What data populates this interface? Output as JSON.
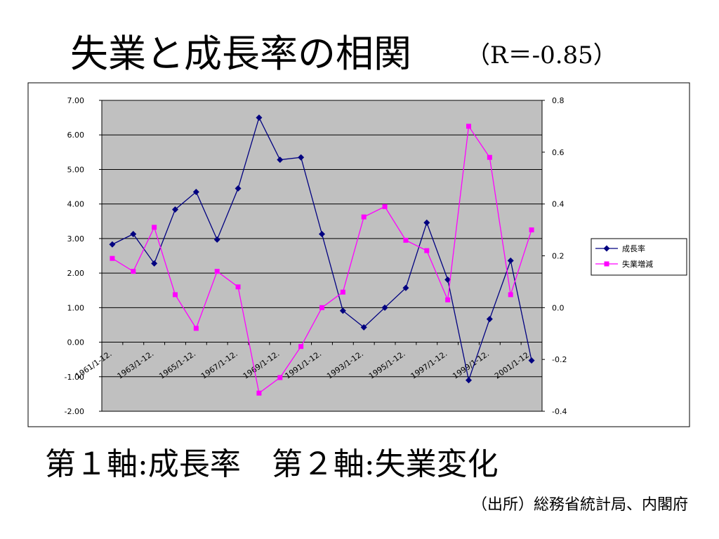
{
  "chart_data": {
    "type": "line",
    "title": "失業と成長率の相関",
    "subtitle": "（R＝-0.85）",
    "caption": "第１軸:成長率　第２軸:失業変化",
    "source": "（出所）総務省統計局、内閣府",
    "categories": [
      "1961/1-12.",
      null,
      "1963/1-12.",
      null,
      "1965/1-12.",
      null,
      "1967/1-12.",
      null,
      "1969/1-12.",
      null,
      "1991/1-12.",
      null,
      "1993/1-12.",
      null,
      "1995/1-12.",
      null,
      "1997/1-12.",
      null,
      "1999/1-12.",
      null,
      "2001/1-12."
    ],
    "series": [
      {
        "name": "成長率",
        "color": "#000080",
        "marker": "diamond",
        "values": [
          2.83,
          3.13,
          2.28,
          3.84,
          4.35,
          2.97,
          4.45,
          6.5,
          5.28,
          5.35,
          3.13,
          0.91,
          0.43,
          1.0,
          1.57,
          3.46,
          1.81,
          -1.1,
          0.67,
          2.36,
          -0.53
        ]
      },
      {
        "name": "失業増減",
        "color": "#ff00ff",
        "marker": "square",
        "axis": "y2",
        "values": [
          0.19,
          0.14,
          0.31,
          0.05,
          -0.08,
          0.14,
          0.08,
          -0.33,
          -0.27,
          -0.15,
          0.0,
          0.06,
          0.35,
          0.39,
          0.26,
          0.22,
          0.03,
          0.7,
          0.58,
          0.05,
          0.3
        ]
      }
    ],
    "ylim": [
      -2,
      7
    ],
    "yticks": [
      {
        "value": -2,
        "label": "-2.00"
      },
      {
        "value": -1,
        "label": "-1.00"
      },
      {
        "value": 0,
        "label": "0.00"
      },
      {
        "value": 1,
        "label": "1.00"
      },
      {
        "value": 2,
        "label": "2.00"
      },
      {
        "value": 3,
        "label": "3.00"
      },
      {
        "value": 4,
        "label": "4.00"
      },
      {
        "value": 5,
        "label": "5.00"
      },
      {
        "value": 6,
        "label": "6.00"
      },
      {
        "value": 7,
        "label": "7.00"
      }
    ],
    "y2lim": [
      -0.4,
      0.8
    ],
    "y2ticks": [
      -0.4,
      -0.2,
      {
        "value": 0,
        "label": "0.0"
      },
      0.2,
      0.4,
      0.6,
      0.8
    ],
    "grid": true,
    "legend": "right",
    "plot_background": "#c0c0c0"
  }
}
